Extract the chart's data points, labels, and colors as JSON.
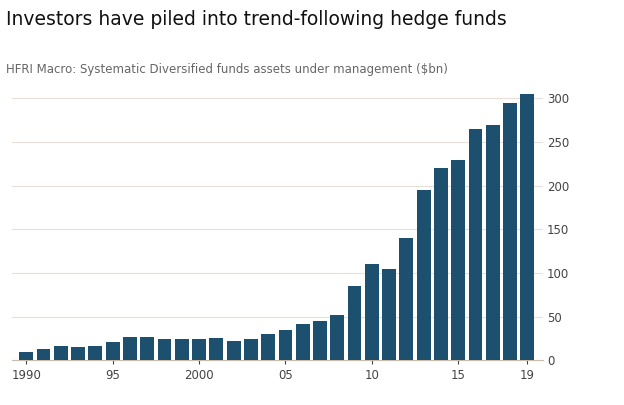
{
  "title": "Investors have piled into trend-following hedge funds",
  "subtitle": "HFRI Macro: Systematic Diversified funds assets under management ($bn)",
  "bar_color": "#1d4f6e",
  "background_color": "#ffffff",
  "years": [
    1990,
    1991,
    1992,
    1993,
    1994,
    1995,
    1996,
    1997,
    1998,
    1999,
    2000,
    2001,
    2002,
    2003,
    2004,
    2005,
    2006,
    2007,
    2008,
    2009,
    2010,
    2011,
    2012,
    2013,
    2014,
    2015,
    2016,
    2017,
    2018,
    2019
  ],
  "values": [
    10,
    13,
    17,
    15,
    17,
    21,
    27,
    27,
    25,
    24,
    25,
    26,
    22,
    25,
    30,
    35,
    42,
    45,
    52,
    85,
    110,
    105,
    140,
    195,
    220,
    230,
    265,
    270,
    295,
    305
  ],
  "yticks": [
    0,
    50,
    100,
    150,
    200,
    250,
    300
  ],
  "xtick_labels": [
    "1990",
    "95",
    "2000",
    "05",
    "10",
    "15",
    "19"
  ],
  "xtick_positions": [
    1990,
    1995,
    2000,
    2005,
    2010,
    2015,
    2019
  ],
  "ylim": [
    0,
    320
  ],
  "grid_color": "#e8e0d8",
  "title_fontsize": 13.5,
  "subtitle_fontsize": 8.5,
  "tick_fontsize": 8.5
}
